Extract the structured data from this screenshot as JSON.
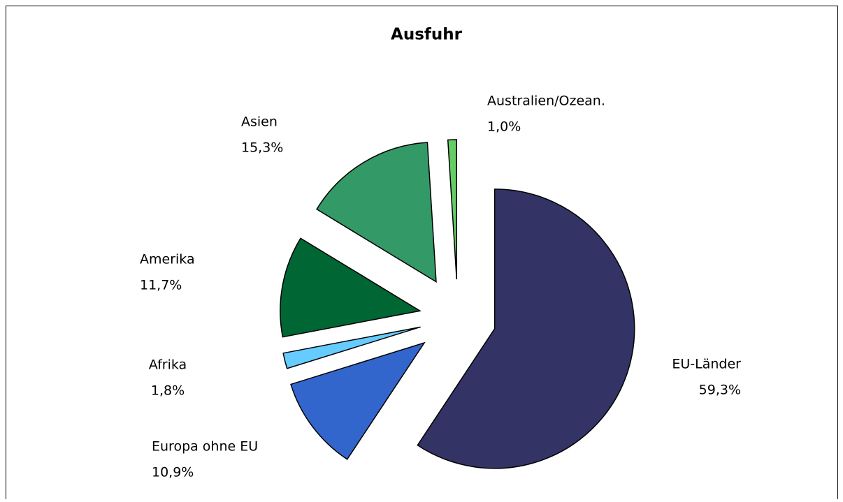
{
  "chart_data": {
    "type": "pie",
    "title": "Ausfuhr",
    "categories": [
      "EU-Länder",
      "Europa ohne EU",
      "Afrika",
      "Amerika",
      "Asien",
      "Australien/Ozean."
    ],
    "values": [
      59.3,
      10.9,
      1.8,
      11.7,
      15.3,
      1.0
    ],
    "value_labels": [
      "59,3%",
      "10,9%",
      "1,8%",
      "11,7%",
      "15,3%",
      "1,0%"
    ],
    "colors": [
      "#333366",
      "#3366cc",
      "#66ccff",
      "#006633",
      "#339966",
      "#66cc66"
    ]
  }
}
